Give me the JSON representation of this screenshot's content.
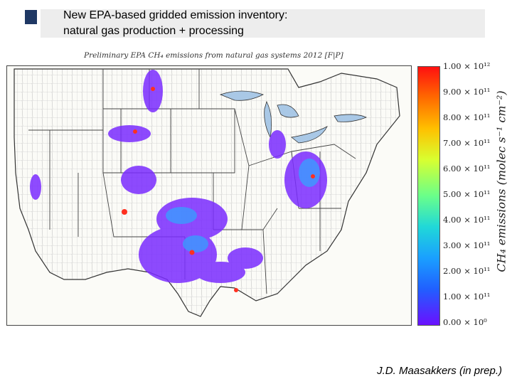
{
  "slide": {
    "title": "New EPA-based gridded emission inventory:\nnatural gas production + processing",
    "credit": "J.D. Maasakkers (in prep.)"
  },
  "map": {
    "caption": "Preliminary EPA CH₄ emissions from natural gas systems 2012 [F|P]"
  },
  "colorbar": {
    "label": "CH₄ emissions (molec s⁻¹ cm⁻²)",
    "ticks": [
      "1.00 × 10¹²",
      "9.00 × 10¹¹",
      "8.00 × 10¹¹",
      "7.00 × 10¹¹",
      "6.00 × 10¹¹",
      "5.00 × 10¹¹",
      "4.00 × 10¹¹",
      "3.00 × 10¹¹",
      "2.00 × 10¹¹",
      "1.00 × 10¹¹",
      "0.00 × 10⁰"
    ]
  }
}
